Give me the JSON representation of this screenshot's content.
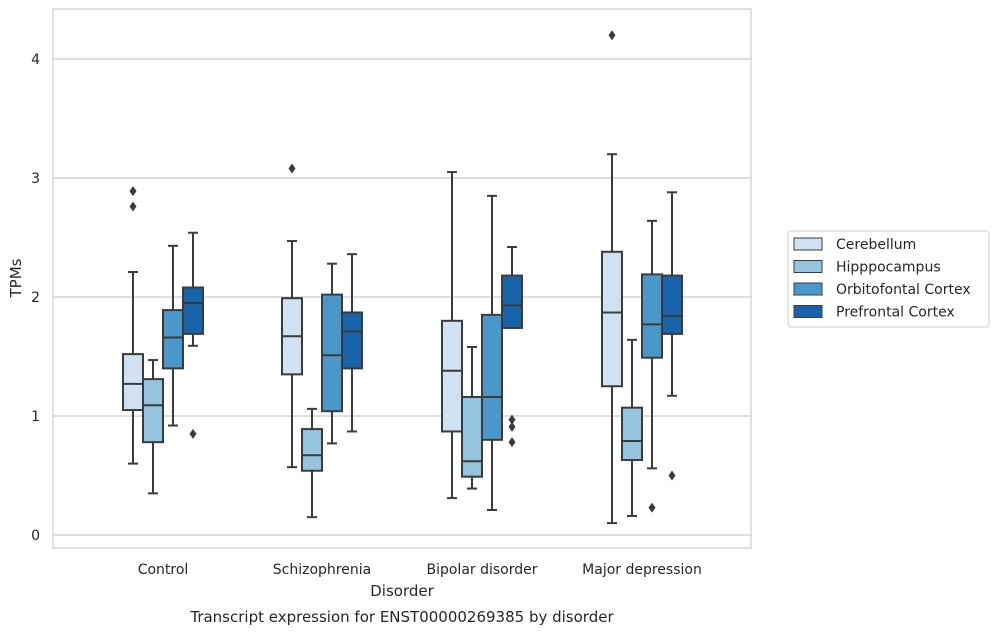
{
  "chart_data": {
    "type": "box",
    "title": "",
    "caption": "Transcript expression for ENST00000269385 by disorder",
    "xlabel": "Disorder",
    "ylabel": "TPMs",
    "ylim": [
      -0.1,
      4.4
    ],
    "yticks": [
      0,
      1,
      2,
      3,
      4
    ],
    "grid": "horizontal",
    "legend_position": "right",
    "categories": [
      "Control",
      "Schizophrenia",
      "Bipolar disorder",
      "Major depression"
    ],
    "series": [
      {
        "name": "Cerebellum",
        "color": "#d0e1f2",
        "boxes": [
          {
            "whisker_low": 0.6,
            "q1": 1.05,
            "median": 1.27,
            "q3": 1.52,
            "whisker_high": 2.21,
            "outliers": [
              2.76,
              2.89
            ]
          },
          {
            "whisker_low": 0.57,
            "q1": 1.35,
            "median": 1.67,
            "q3": 1.99,
            "whisker_high": 2.47,
            "outliers": [
              3.08
            ]
          },
          {
            "whisker_low": 0.31,
            "q1": 0.87,
            "median": 1.38,
            "q3": 1.8,
            "whisker_high": 3.05,
            "outliers": []
          },
          {
            "whisker_low": 0.1,
            "q1": 1.25,
            "median": 1.87,
            "q3": 2.38,
            "whisker_high": 3.2,
            "outliers": [
              4.2
            ]
          }
        ]
      },
      {
        "name": "Hipppocampus",
        "color": "#94c4df",
        "boxes": [
          {
            "whisker_low": 0.35,
            "q1": 0.78,
            "median": 1.09,
            "q3": 1.31,
            "whisker_high": 1.47,
            "outliers": []
          },
          {
            "whisker_low": 0.15,
            "q1": 0.54,
            "median": 0.67,
            "q3": 0.89,
            "whisker_high": 1.06,
            "outliers": []
          },
          {
            "whisker_low": 0.39,
            "q1": 0.49,
            "median": 0.62,
            "q3": 1.16,
            "whisker_high": 1.58,
            "outliers": []
          },
          {
            "whisker_low": 0.16,
            "q1": 0.63,
            "median": 0.79,
            "q3": 1.07,
            "whisker_high": 1.64,
            "outliers": []
          }
        ]
      },
      {
        "name": "Orbitofontal Cortex",
        "color": "#4a98c9",
        "boxes": [
          {
            "whisker_low": 0.92,
            "q1": 1.4,
            "median": 1.66,
            "q3": 1.89,
            "whisker_high": 2.43,
            "outliers": []
          },
          {
            "whisker_low": 0.77,
            "q1": 1.04,
            "median": 1.51,
            "q3": 2.02,
            "whisker_high": 2.28,
            "outliers": []
          },
          {
            "whisker_low": 0.21,
            "q1": 0.8,
            "median": 1.16,
            "q3": 1.85,
            "whisker_high": 2.85,
            "outliers": []
          },
          {
            "whisker_low": 0.56,
            "q1": 1.49,
            "median": 1.77,
            "q3": 2.19,
            "whisker_high": 2.64,
            "outliers": [
              0.23
            ]
          }
        ]
      },
      {
        "name": "Prefrontal Cortex",
        "color": "#1764ab",
        "boxes": [
          {
            "whisker_low": 1.59,
            "q1": 1.69,
            "median": 1.95,
            "q3": 2.08,
            "whisker_high": 2.54,
            "outliers": [
              0.85
            ]
          },
          {
            "whisker_low": 0.87,
            "q1": 1.4,
            "median": 1.71,
            "q3": 1.87,
            "whisker_high": 2.36,
            "outliers": []
          },
          {
            "whisker_low": 1.74,
            "q1": 1.74,
            "median": 1.93,
            "q3": 2.18,
            "whisker_high": 2.42,
            "outliers": [
              0.78,
              0.91,
              0.97
            ]
          },
          {
            "whisker_low": 1.17,
            "q1": 1.69,
            "median": 1.84,
            "q3": 2.18,
            "whisker_high": 2.88,
            "outliers": [
              0.5
            ]
          }
        ]
      }
    ]
  }
}
